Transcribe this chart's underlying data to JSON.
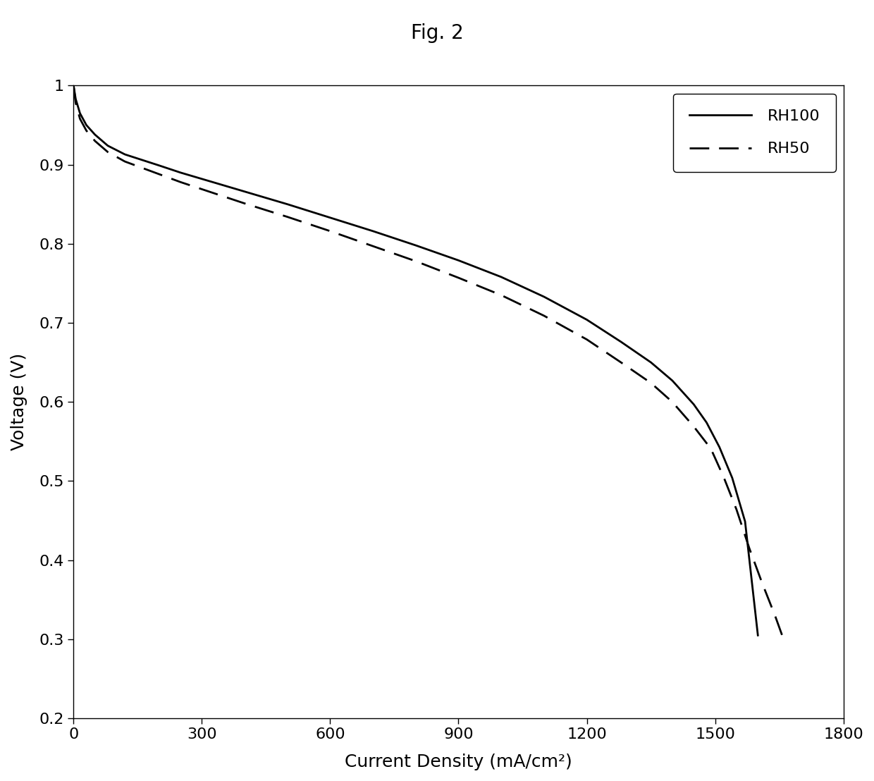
{
  "title": "Fig. 2",
  "xlabel": "Current Density (mA/cm²)",
  "ylabel": "Voltage (V)",
  "xlim": [
    0,
    1800
  ],
  "ylim": [
    0.2,
    1.0
  ],
  "xticks": [
    0,
    300,
    600,
    900,
    1200,
    1500,
    1800
  ],
  "yticks": [
    0.2,
    0.3,
    0.4,
    0.5,
    0.6,
    0.7,
    0.8,
    0.9,
    1.0
  ],
  "rh100_x": [
    0,
    5,
    15,
    30,
    50,
    80,
    120,
    160,
    200,
    250,
    300,
    400,
    500,
    600,
    700,
    800,
    900,
    1000,
    1100,
    1200,
    1280,
    1350,
    1400,
    1450,
    1480,
    1510,
    1540,
    1570,
    1600
  ],
  "rh100_y": [
    1.0,
    0.983,
    0.965,
    0.95,
    0.938,
    0.924,
    0.913,
    0.906,
    0.899,
    0.89,
    0.882,
    0.866,
    0.85,
    0.833,
    0.816,
    0.798,
    0.779,
    0.758,
    0.733,
    0.704,
    0.676,
    0.65,
    0.627,
    0.597,
    0.574,
    0.543,
    0.504,
    0.449,
    0.305
  ],
  "rh50_x": [
    0,
    5,
    15,
    30,
    50,
    80,
    120,
    160,
    200,
    250,
    300,
    400,
    500,
    600,
    700,
    800,
    900,
    1000,
    1100,
    1200,
    1280,
    1350,
    1400,
    1450,
    1490,
    1520,
    1550,
    1580,
    1610,
    1640,
    1660
  ],
  "rh50_y": [
    1.0,
    0.978,
    0.958,
    0.943,
    0.93,
    0.916,
    0.904,
    0.896,
    0.888,
    0.878,
    0.869,
    0.851,
    0.834,
    0.816,
    0.797,
    0.778,
    0.757,
    0.735,
    0.709,
    0.679,
    0.65,
    0.624,
    0.6,
    0.569,
    0.541,
    0.505,
    0.464,
    0.415,
    0.371,
    0.33,
    0.3
  ],
  "line_color": "#000000",
  "background_color": "#ffffff",
  "legend_labels": [
    "RH100",
    "RH50"
  ],
  "title_fontsize": 20,
  "label_fontsize": 18,
  "tick_fontsize": 16,
  "legend_fontsize": 16,
  "line_width": 2.0
}
